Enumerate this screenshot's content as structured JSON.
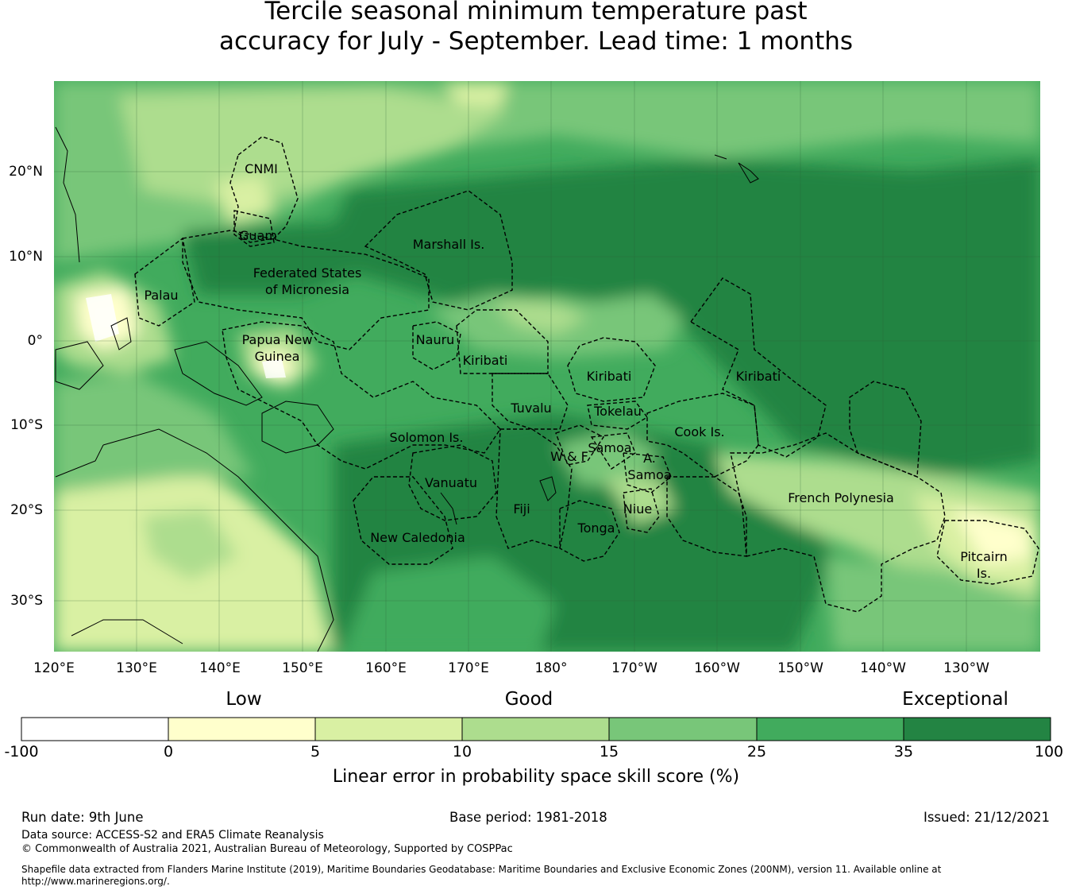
{
  "title": {
    "line1": "Tercile seasonal minimum temperature past",
    "line2": "accuracy for July - September. Lead time: 1 months"
  },
  "axes": {
    "lon_labels": [
      "120°E",
      "130°E",
      "140°E",
      "150°E",
      "160°E",
      "170°E",
      "180°",
      "170°W",
      "160°W",
      "150°W",
      "140°W",
      "130°W"
    ],
    "lat_labels": [
      "20°N",
      "10°N",
      "0°",
      "10°S",
      "20°S",
      "30°S"
    ]
  },
  "regions": [
    {
      "name": "CNMI"
    },
    {
      "name": "Guam"
    },
    {
      "name": "Marshall Is."
    },
    {
      "name": "Federated States"
    },
    {
      "name": "of Micronesia"
    },
    {
      "name": "Palau"
    },
    {
      "name": "Papua New"
    },
    {
      "name": "Guinea"
    },
    {
      "name": "Nauru"
    },
    {
      "name": "Kiribati"
    },
    {
      "name": "Kiribati"
    },
    {
      "name": "Kiribati"
    },
    {
      "name": "Tuvalu"
    },
    {
      "name": "Tokelau"
    },
    {
      "name": "Solomon Is."
    },
    {
      "name": "Cook Is."
    },
    {
      "name": "W & F"
    },
    {
      "name": "Samoa"
    },
    {
      "name": "A."
    },
    {
      "name": "Samoa"
    },
    {
      "name": "Vanuatu"
    },
    {
      "name": "Fiji"
    },
    {
      "name": "Niue"
    },
    {
      "name": "Tonga"
    },
    {
      "name": "New Caledonia"
    },
    {
      "name": "French Polynesia"
    },
    {
      "name": "Pitcairn"
    },
    {
      "name": "Is."
    }
  ],
  "colorbar": {
    "headings": [
      "Low",
      "Good",
      "Exceptional"
    ],
    "ticks": [
      "-100",
      "0",
      "5",
      "10",
      "15",
      "25",
      "35",
      "100"
    ],
    "colors": [
      "#ffffff",
      "#ffffcc",
      "#d9f0a3",
      "#addd8e",
      "#78c679",
      "#41ab5d",
      "#238443"
    ],
    "label": "Linear error in probability space skill score (%)"
  },
  "footer": {
    "run_date": "Run date: 9th June",
    "base_period": "Base period: 1981-2018",
    "issued": "Issued: 21/12/2021",
    "data_source": "Data source: ACCESS-S2 and ERA5 Climate Reanalysis",
    "copyright": "© Commonwealth of Australia 2021, Australian Bureau of Meteorology, Supported by COSPPac",
    "shapefile_line1": "Shapefile data extracted from Flanders Marine Institute (2019), Maritime Boundaries Geodatabase: Maritime Boundaries and Exclusive Economic Zones (200NM), version 11. Available online at",
    "shapefile_line2": "http://www.marineregions.org/."
  }
}
